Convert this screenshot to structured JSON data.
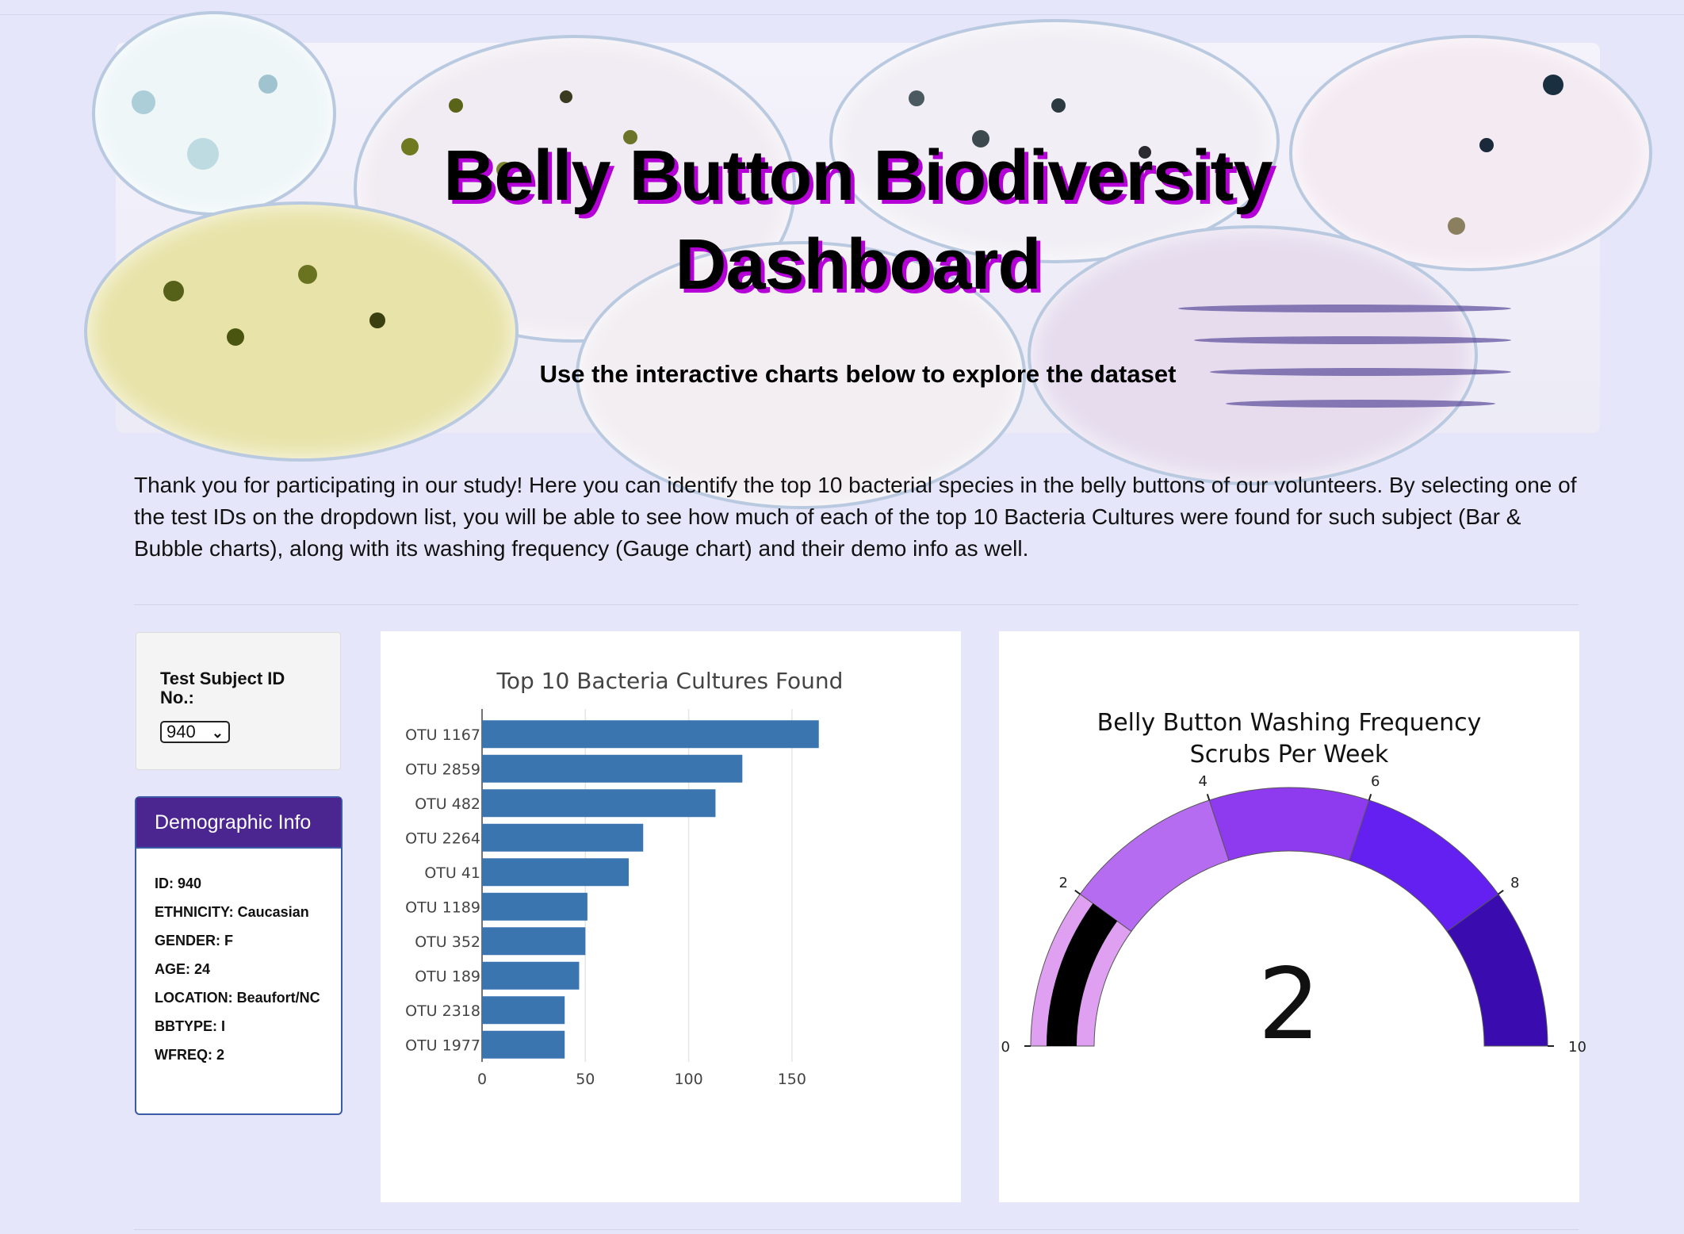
{
  "header": {
    "title_line1": "Belly Button Biodiversity",
    "title_line2": "Dashboard",
    "subtitle": "Use the interactive charts below to explore the dataset"
  },
  "intro": "Thank you for participating in our study! Here you can identify the top 10 bacterial species in the belly buttons of our volunteers. By selecting one of the test IDs on the dropdown list, you will be able to see how much of each of the top 10 Bacteria Cultures were found for such subject (Bar & Bubble charts), along with its washing frequency (Gauge chart) and their demo info as well.",
  "selector": {
    "label": "Test Subject ID No.:",
    "selected": "940",
    "chevron_icon": "chevron-down-icon"
  },
  "demographic": {
    "title": "Demographic Info",
    "lines": [
      "ID: 940",
      "ETHNICITY: Caucasian",
      "GENDER: F",
      "AGE: 24",
      "LOCATION: Beaufort/NC",
      "BBTYPE: I",
      "WFREQ: 2"
    ]
  },
  "chart_data": [
    {
      "type": "bar",
      "orientation": "horizontal",
      "title": "Top 10 Bacteria Cultures Found",
      "categories": [
        "OTU 1167",
        "OTU 2859",
        "OTU 482",
        "OTU 2264",
        "OTU 41",
        "OTU 1189",
        "OTU 352",
        "OTU 189",
        "OTU 2318",
        "OTU 1977"
      ],
      "values": [
        163,
        126,
        113,
        78,
        71,
        51,
        50,
        47,
        40,
        40
      ],
      "xlim": [
        0,
        175
      ],
      "xticks": [
        0,
        50,
        100,
        150
      ],
      "grid": true,
      "bar_color": "#3a75b0",
      "xlabel": "",
      "ylabel": ""
    },
    {
      "type": "gauge",
      "title_line1": "Belly Button Washing Frequency",
      "title_line2": "Scrubs Per Week",
      "value": 2,
      "range": [
        0,
        10
      ],
      "ticks": [
        "0",
        "2",
        "4",
        "6",
        "8",
        "10"
      ],
      "band_colors": [
        "#e0a0f2",
        "#b66cf0",
        "#8e3bef",
        "#6320f0",
        "#3a0cb0"
      ],
      "value_bar_color": "#000000"
    }
  ]
}
